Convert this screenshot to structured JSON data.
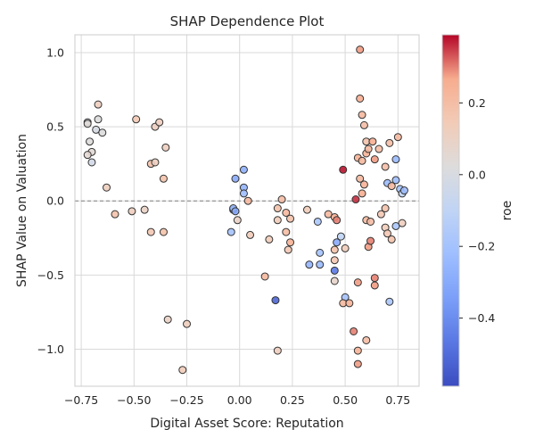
{
  "chart_data": {
    "type": "scatter",
    "title": "SHAP Dependence Plot",
    "xlabel": "Digital Asset Score: Reputation",
    "ylabel": "SHAP Value on Valuation",
    "xlim": [
      -0.78,
      0.85
    ],
    "ylim": [
      -1.25,
      1.12
    ],
    "x_ticks": [
      -0.75,
      -0.5,
      -0.25,
      0.0,
      0.25,
      0.5,
      0.75
    ],
    "x_tick_labels": [
      "−0.75",
      "−0.50",
      "−0.25",
      "0.00",
      "0.25",
      "0.50",
      "0.75"
    ],
    "y_ticks": [
      1.0,
      0.5,
      0.0,
      -0.5,
      -1.0
    ],
    "y_tick_labels": [
      "1.0",
      "0.5",
      "0.0",
      "−0.5",
      "−1.0"
    ],
    "grid": true,
    "reference_line_y": 0,
    "colorbar": {
      "label": "roe",
      "colormap": "coolwarm",
      "range": [
        -0.59,
        0.39
      ],
      "ticks": [
        0.2,
        0.0,
        -0.2,
        -0.4
      ],
      "tick_labels": [
        "0.2",
        "0.0",
        "−0.2",
        "−0.4"
      ]
    },
    "points": [
      {
        "x": -0.72,
        "y": 0.53,
        "c": -0.02
      },
      {
        "x": -0.72,
        "y": 0.52,
        "c": 0.04
      },
      {
        "x": -0.71,
        "y": 0.4,
        "c": 0.03
      },
      {
        "x": -0.7,
        "y": 0.33,
        "c": 0.05
      },
      {
        "x": -0.72,
        "y": 0.31,
        "c": 0.06
      },
      {
        "x": -0.7,
        "y": 0.26,
        "c": -0.02
      },
      {
        "x": -0.68,
        "y": 0.48,
        "c": -0.01
      },
      {
        "x": -0.67,
        "y": 0.65,
        "c": 0.12
      },
      {
        "x": -0.67,
        "y": 0.55,
        "c": 0.02
      },
      {
        "x": -0.65,
        "y": 0.46,
        "c": 0.02
      },
      {
        "x": -0.63,
        "y": 0.09,
        "c": 0.12
      },
      {
        "x": -0.59,
        "y": -0.09,
        "c": 0.18
      },
      {
        "x": -0.49,
        "y": 0.55,
        "c": 0.15
      },
      {
        "x": -0.51,
        "y": -0.07,
        "c": 0.12
      },
      {
        "x": -0.45,
        "y": -0.06,
        "c": 0.1
      },
      {
        "x": -0.42,
        "y": 0.25,
        "c": 0.18
      },
      {
        "x": -0.4,
        "y": 0.5,
        "c": 0.12
      },
      {
        "x": -0.38,
        "y": 0.53,
        "c": 0.12
      },
      {
        "x": -0.4,
        "y": 0.26,
        "c": 0.12
      },
      {
        "x": -0.36,
        "y": 0.15,
        "c": 0.18
      },
      {
        "x": -0.35,
        "y": 0.36,
        "c": 0.12
      },
      {
        "x": -0.42,
        "y": -0.21,
        "c": 0.16
      },
      {
        "x": -0.36,
        "y": -0.21,
        "c": 0.18
      },
      {
        "x": -0.34,
        "y": -0.8,
        "c": 0.1
      },
      {
        "x": -0.25,
        "y": -0.83,
        "c": 0.12
      },
      {
        "x": -0.27,
        "y": -1.14,
        "c": 0.14
      },
      {
        "x": -0.04,
        "y": -0.21,
        "c": -0.2
      },
      {
        "x": -0.03,
        "y": -0.06,
        "c": -0.28
      },
      {
        "x": -0.03,
        "y": -0.05,
        "c": -0.24
      },
      {
        "x": -0.02,
        "y": -0.07,
        "c": -0.3
      },
      {
        "x": -0.02,
        "y": 0.15,
        "c": -0.3
      },
      {
        "x": 0.02,
        "y": 0.21,
        "c": -0.28
      },
      {
        "x": 0.02,
        "y": 0.09,
        "c": -0.26
      },
      {
        "x": 0.02,
        "y": 0.05,
        "c": -0.22
      },
      {
        "x": -0.01,
        "y": -0.13,
        "c": 0.1
      },
      {
        "x": 0.04,
        "y": 0.0,
        "c": 0.22
      },
      {
        "x": 0.05,
        "y": -0.23,
        "c": 0.14
      },
      {
        "x": 0.12,
        "y": -0.51,
        "c": 0.22
      },
      {
        "x": 0.14,
        "y": -0.26,
        "c": 0.14
      },
      {
        "x": 0.18,
        "y": -0.05,
        "c": 0.18
      },
      {
        "x": 0.2,
        "y": 0.01,
        "c": 0.2
      },
      {
        "x": 0.22,
        "y": -0.08,
        "c": 0.22
      },
      {
        "x": 0.18,
        "y": -0.13,
        "c": 0.14
      },
      {
        "x": 0.22,
        "y": -0.21,
        "c": 0.2
      },
      {
        "x": 0.24,
        "y": -0.12,
        "c": 0.18
      },
      {
        "x": 0.24,
        "y": -0.28,
        "c": 0.24
      },
      {
        "x": 0.23,
        "y": -0.33,
        "c": 0.16
      },
      {
        "x": 0.17,
        "y": -0.67,
        "c": -0.52
      },
      {
        "x": 0.18,
        "y": -1.01,
        "c": 0.12
      },
      {
        "x": 0.32,
        "y": -0.06,
        "c": 0.14
      },
      {
        "x": 0.33,
        "y": -0.43,
        "c": -0.26
      },
      {
        "x": 0.37,
        "y": -0.14,
        "c": -0.18
      },
      {
        "x": 0.38,
        "y": -0.35,
        "c": -0.2
      },
      {
        "x": 0.38,
        "y": -0.43,
        "c": -0.24
      },
      {
        "x": 0.42,
        "y": -0.09,
        "c": 0.22
      },
      {
        "x": 0.45,
        "y": -0.11,
        "c": 0.26
      },
      {
        "x": 0.46,
        "y": -0.13,
        "c": 0.3
      },
      {
        "x": 0.46,
        "y": -0.28,
        "c": -0.3
      },
      {
        "x": 0.45,
        "y": -0.33,
        "c": 0.18
      },
      {
        "x": 0.45,
        "y": -0.4,
        "c": 0.16
      },
      {
        "x": 0.45,
        "y": -0.47,
        "c": -0.46
      },
      {
        "x": 0.45,
        "y": -0.54,
        "c": 0.08
      },
      {
        "x": 0.48,
        "y": -0.24,
        "c": -0.1
      },
      {
        "x": 0.5,
        "y": -0.32,
        "c": 0.14
      },
      {
        "x": 0.5,
        "y": -0.65,
        "c": -0.2
      },
      {
        "x": 0.49,
        "y": -0.69,
        "c": 0.22
      },
      {
        "x": 0.49,
        "y": 0.21,
        "c": 0.38
      },
      {
        "x": 0.52,
        "y": -0.69,
        "c": 0.24
      },
      {
        "x": 0.55,
        "y": 0.01,
        "c": 0.36
      },
      {
        "x": 0.54,
        "y": -0.88,
        "c": 0.3
      },
      {
        "x": 0.56,
        "y": -0.55,
        "c": 0.28
      },
      {
        "x": 0.56,
        "y": -1.01,
        "c": 0.24
      },
      {
        "x": 0.56,
        "y": -1.1,
        "c": 0.28
      },
      {
        "x": 0.57,
        "y": 1.02,
        "c": 0.28
      },
      {
        "x": 0.57,
        "y": 0.69,
        "c": 0.26
      },
      {
        "x": 0.58,
        "y": 0.58,
        "c": 0.22
      },
      {
        "x": 0.59,
        "y": 0.51,
        "c": 0.2
      },
      {
        "x": 0.56,
        "y": 0.29,
        "c": 0.24
      },
      {
        "x": 0.58,
        "y": 0.27,
        "c": 0.22
      },
      {
        "x": 0.57,
        "y": 0.15,
        "c": 0.22
      },
      {
        "x": 0.59,
        "y": 0.11,
        "c": 0.24
      },
      {
        "x": 0.58,
        "y": 0.05,
        "c": 0.26
      },
      {
        "x": 0.6,
        "y": 0.4,
        "c": 0.18
      },
      {
        "x": 0.6,
        "y": 0.32,
        "c": 0.24
      },
      {
        "x": 0.61,
        "y": 0.35,
        "c": 0.22
      },
      {
        "x": 0.63,
        "y": 0.4,
        "c": 0.26
      },
      {
        "x": 0.64,
        "y": 0.28,
        "c": 0.28
      },
      {
        "x": 0.66,
        "y": 0.35,
        "c": 0.2
      },
      {
        "x": 0.6,
        "y": -0.13,
        "c": 0.22
      },
      {
        "x": 0.62,
        "y": -0.14,
        "c": 0.2
      },
      {
        "x": 0.61,
        "y": -0.31,
        "c": 0.28
      },
      {
        "x": 0.62,
        "y": -0.27,
        "c": 0.3
      },
      {
        "x": 0.64,
        "y": -0.52,
        "c": 0.3
      },
      {
        "x": 0.64,
        "y": -0.57,
        "c": 0.28
      },
      {
        "x": 0.6,
        "y": -0.94,
        "c": 0.2
      },
      {
        "x": 0.67,
        "y": -0.09,
        "c": 0.16
      },
      {
        "x": 0.69,
        "y": -0.05,
        "c": 0.18
      },
      {
        "x": 0.69,
        "y": -0.18,
        "c": 0.14
      },
      {
        "x": 0.69,
        "y": 0.23,
        "c": 0.2
      },
      {
        "x": 0.7,
        "y": -0.22,
        "c": 0.16
      },
      {
        "x": 0.7,
        "y": 0.12,
        "c": -0.24
      },
      {
        "x": 0.71,
        "y": 0.39,
        "c": 0.2
      },
      {
        "x": 0.72,
        "y": 0.1,
        "c": 0.22
      },
      {
        "x": 0.72,
        "y": -0.26,
        "c": 0.18
      },
      {
        "x": 0.71,
        "y": -0.68,
        "c": -0.18
      },
      {
        "x": 0.74,
        "y": 0.14,
        "c": -0.22
      },
      {
        "x": 0.74,
        "y": 0.28,
        "c": -0.24
      },
      {
        "x": 0.74,
        "y": -0.17,
        "c": -0.18
      },
      {
        "x": 0.75,
        "y": 0.43,
        "c": 0.22
      },
      {
        "x": 0.76,
        "y": 0.08,
        "c": -0.2
      },
      {
        "x": 0.77,
        "y": 0.05,
        "c": -0.1
      },
      {
        "x": 0.78,
        "y": 0.07,
        "c": -0.22
      },
      {
        "x": 0.77,
        "y": -0.15,
        "c": 0.12
      }
    ]
  }
}
